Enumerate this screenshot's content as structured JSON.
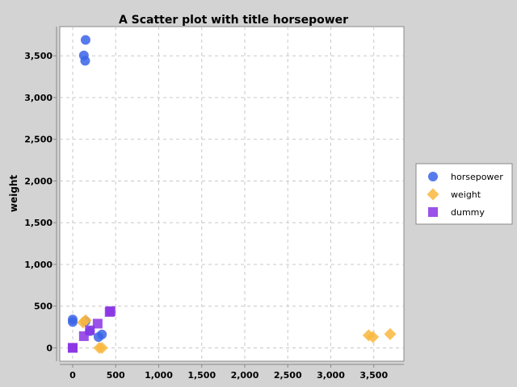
{
  "chart_data": {
    "type": "scatter",
    "title": "A Scatter plot with title horsepower",
    "xlabel": "",
    "ylabel": "weight",
    "xlim": [
      -150,
      3850
    ],
    "ylim": [
      -160,
      3850
    ],
    "x_ticks": [
      0,
      500,
      1000,
      1500,
      2000,
      2500,
      3000,
      3500
    ],
    "x_tick_labels": [
      "0",
      "500",
      "1,000",
      "1,500",
      "2,000",
      "2,500",
      "3,000",
      "3,500"
    ],
    "y_ticks": [
      0,
      500,
      1000,
      1500,
      2000,
      2500,
      3000,
      3500
    ],
    "y_tick_labels": [
      "0",
      "500",
      "1,000",
      "1,500",
      "2,000",
      "2,500",
      "3,000",
      "3,500"
    ],
    "grid": true,
    "legend_position": "right",
    "series": [
      {
        "name": "horsepower",
        "marker": "circle",
        "color": "#3a64e8",
        "points": [
          [
            150,
            3690
          ],
          [
            130,
            3505
          ],
          [
            145,
            3440
          ],
          [
            0,
            340
          ],
          [
            0,
            310
          ],
          [
            300,
            130
          ],
          [
            340,
            160
          ],
          [
            150,
            320
          ],
          [
            200,
            200
          ]
        ]
      },
      {
        "name": "weight",
        "marker": "diamond",
        "color": "#f9b73e",
        "points": [
          [
            3440,
            150
          ],
          [
            3490,
            130
          ],
          [
            3690,
            165
          ],
          [
            150,
            330
          ],
          [
            120,
            305
          ],
          [
            310,
            0
          ],
          [
            340,
            0
          ]
        ]
      },
      {
        "name": "dummy",
        "marker": "square",
        "color": "#8a34e4",
        "points": [
          [
            0,
            0
          ],
          [
            0,
            0
          ],
          [
            130,
            140
          ],
          [
            200,
            210
          ],
          [
            290,
            290
          ],
          [
            430,
            430
          ],
          [
            440,
            440
          ]
        ]
      }
    ]
  }
}
